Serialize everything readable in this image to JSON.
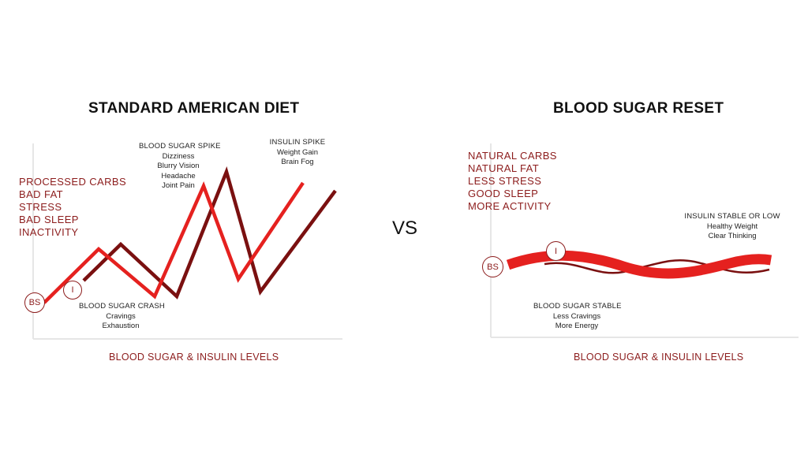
{
  "vs_label": "VS",
  "left": {
    "title": "STANDARD AMERICAN DIET",
    "factors": [
      "PROCESSED CARBS",
      "BAD FAT",
      "STRESS",
      "BAD SLEEP",
      "INACTIVITY"
    ],
    "footer": "BLOOD SUGAR & INSULIN LEVELS",
    "marker_bs": "BS",
    "marker_i": "I",
    "notes": {
      "spike": {
        "heading": "BLOOD SUGAR SPIKE",
        "items": [
          "Dizziness",
          "Blurry Vision",
          "Headache",
          "Joint Pain"
        ]
      },
      "insulin": {
        "heading": "INSULIN SPIKE",
        "items": [
          "Weight Gain",
          "Brain Fog"
        ]
      },
      "crash": {
        "heading": "BLOOD SUGAR CRASH",
        "items": [
          "Cravings",
          "Exhaustion"
        ]
      }
    }
  },
  "right": {
    "title": "BLOOD SUGAR RESET",
    "factors": [
      "NATURAL CARBS",
      "NATURAL FAT",
      "LESS STRESS",
      "GOOD SLEEP",
      "MORE ACTIVITY"
    ],
    "footer": "BLOOD SUGAR & INSULIN LEVELS",
    "marker_bs": "BS",
    "marker_i": "I",
    "notes": {
      "stable_low": {
        "heading": "INSULIN STABLE OR LOW",
        "items": [
          "Healthy Weight",
          "Clear Thinking"
        ]
      },
      "stable": {
        "heading": "BLOOD SUGAR STABLE",
        "items": [
          "Less Cravings",
          "More Energy"
        ]
      }
    }
  },
  "colors": {
    "blood_sugar": "#e5211f",
    "insulin": "#7a1010",
    "axis": "#e6e6e6",
    "text_accent": "#8c1c1c"
  }
}
